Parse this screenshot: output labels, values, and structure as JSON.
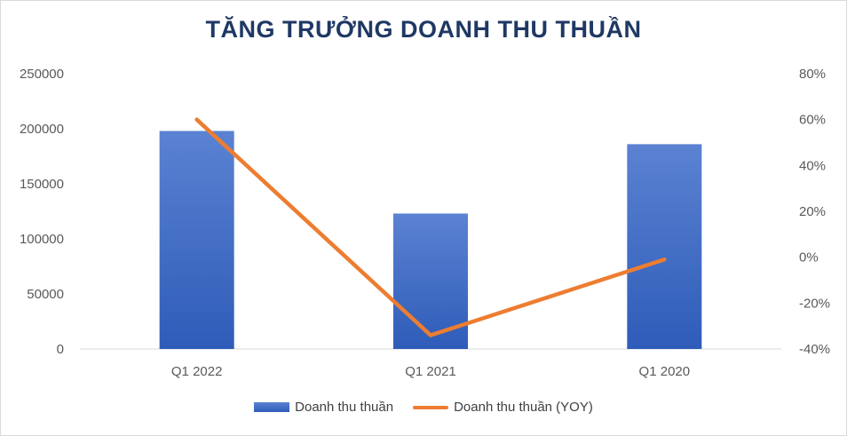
{
  "chart_data": {
    "type": "bar",
    "title": "TĂNG TRƯỞNG DOANH THU THUẦN",
    "categories": [
      "Q1 2022",
      "Q1 2021",
      "Q1 2020"
    ],
    "series": [
      {
        "name": "Doanh thu thuần",
        "type": "bar",
        "axis": "left",
        "values": [
          198000,
          123000,
          186000
        ],
        "color": "#4472c4"
      },
      {
        "name": "Doanh thu thuần (YOY)",
        "type": "line",
        "axis": "right",
        "values": [
          0.6,
          -0.34,
          -0.01
        ],
        "color": "#ed7d31"
      }
    ],
    "y_left": {
      "min": 0,
      "max": 250000,
      "ticks": [
        0,
        50000,
        100000,
        150000,
        200000,
        250000
      ],
      "tick_labels": [
        "0",
        "50000",
        "100000",
        "150000",
        "200000",
        "250000"
      ]
    },
    "y_right": {
      "min": -0.4,
      "max": 0.8,
      "ticks": [
        -0.4,
        -0.2,
        0.0,
        0.2,
        0.4,
        0.6,
        0.8
      ],
      "tick_labels": [
        "-40%",
        "-20%",
        "0%",
        "20%",
        "40%",
        "60%",
        "80%"
      ]
    },
    "grid": false,
    "legend_position": "bottom"
  }
}
